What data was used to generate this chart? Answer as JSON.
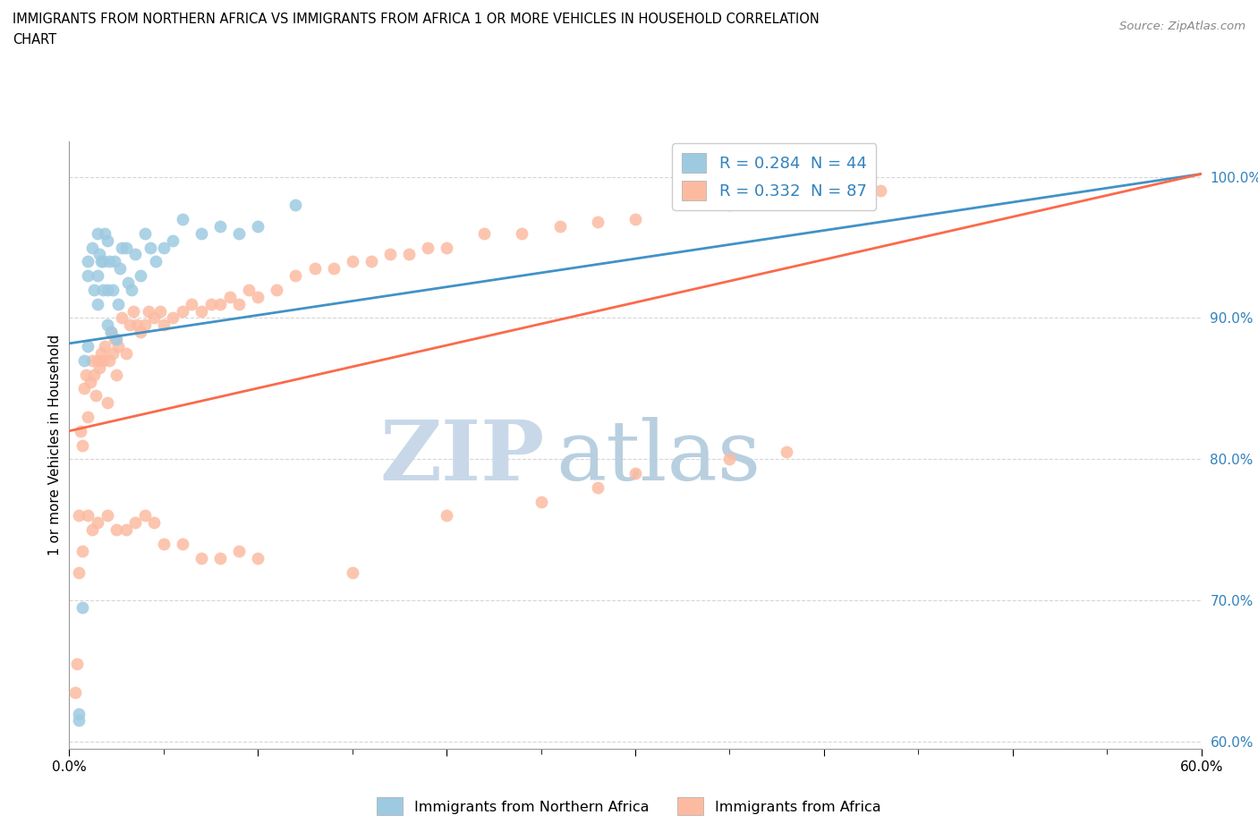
{
  "title_line1": "IMMIGRANTS FROM NORTHERN AFRICA VS IMMIGRANTS FROM AFRICA 1 OR MORE VEHICLES IN HOUSEHOLD CORRELATION",
  "title_line2": "CHART",
  "source": "Source: ZipAtlas.com",
  "ylabel": "1 or more Vehicles in Household",
  "xlim": [
    0.0,
    0.6
  ],
  "ylim": [
    0.595,
    1.025
  ],
  "yticks": [
    0.6,
    0.7,
    0.8,
    0.9,
    1.0
  ],
  "ytick_labels": [
    "60.0%",
    "70.0%",
    "80.0%",
    "90.0%",
    "100.0%"
  ],
  "xticks": [
    0.0,
    0.1,
    0.2,
    0.3,
    0.4,
    0.5,
    0.6
  ],
  "xtick_labels_show": [
    "0.0%",
    "",
    "",
    "",
    "",
    "",
    "60.0%"
  ],
  "R_blue": 0.284,
  "N_blue": 44,
  "R_pink": 0.332,
  "N_pink": 87,
  "color_blue": "#9ecae1",
  "color_pink": "#fcbba1",
  "color_blue_line": "#4292c6",
  "color_pink_line": "#fb6a4a",
  "watermark_zip": "ZIP",
  "watermark_atlas": "atlas",
  "watermark_color_zip": "#c8d8e8",
  "watermark_color_atlas": "#b8cfe0",
  "legend_text_color": "#3182bd",
  "blue_scatter_x": [
    0.005,
    0.005,
    0.007,
    0.01,
    0.01,
    0.012,
    0.013,
    0.015,
    0.015,
    0.016,
    0.017,
    0.018,
    0.018,
    0.019,
    0.02,
    0.02,
    0.021,
    0.022,
    0.023,
    0.024,
    0.025,
    0.026,
    0.027,
    0.028,
    0.03,
    0.031,
    0.033,
    0.035,
    0.038,
    0.04,
    0.043,
    0.046,
    0.05,
    0.055,
    0.06,
    0.07,
    0.08,
    0.09,
    0.1,
    0.12,
    0.008,
    0.01,
    0.015,
    0.02
  ],
  "blue_scatter_y": [
    0.62,
    0.615,
    0.695,
    0.93,
    0.94,
    0.95,
    0.92,
    0.91,
    0.93,
    0.945,
    0.94,
    0.92,
    0.94,
    0.96,
    0.895,
    0.92,
    0.94,
    0.89,
    0.92,
    0.94,
    0.885,
    0.91,
    0.935,
    0.95,
    0.95,
    0.925,
    0.92,
    0.945,
    0.93,
    0.96,
    0.95,
    0.94,
    0.95,
    0.955,
    0.97,
    0.96,
    0.965,
    0.96,
    0.965,
    0.98,
    0.87,
    0.88,
    0.96,
    0.955
  ],
  "pink_scatter_x": [
    0.003,
    0.004,
    0.005,
    0.006,
    0.007,
    0.008,
    0.009,
    0.01,
    0.011,
    0.012,
    0.013,
    0.014,
    0.015,
    0.016,
    0.017,
    0.018,
    0.019,
    0.02,
    0.021,
    0.022,
    0.023,
    0.024,
    0.025,
    0.026,
    0.028,
    0.03,
    0.032,
    0.034,
    0.036,
    0.038,
    0.04,
    0.042,
    0.045,
    0.048,
    0.05,
    0.055,
    0.06,
    0.065,
    0.07,
    0.075,
    0.08,
    0.085,
    0.09,
    0.095,
    0.1,
    0.11,
    0.12,
    0.13,
    0.14,
    0.15,
    0.16,
    0.17,
    0.18,
    0.19,
    0.2,
    0.22,
    0.24,
    0.26,
    0.28,
    0.3,
    0.35,
    0.4,
    0.43,
    0.005,
    0.007,
    0.01,
    0.012,
    0.015,
    0.02,
    0.025,
    0.03,
    0.035,
    0.04,
    0.045,
    0.05,
    0.06,
    0.07,
    0.08,
    0.09,
    0.1,
    0.15,
    0.2,
    0.25,
    0.28,
    0.3,
    0.35,
    0.38
  ],
  "pink_scatter_y": [
    0.635,
    0.655,
    0.76,
    0.82,
    0.81,
    0.85,
    0.86,
    0.83,
    0.855,
    0.87,
    0.86,
    0.845,
    0.87,
    0.865,
    0.875,
    0.87,
    0.88,
    0.84,
    0.87,
    0.89,
    0.875,
    0.885,
    0.86,
    0.88,
    0.9,
    0.875,
    0.895,
    0.905,
    0.895,
    0.89,
    0.895,
    0.905,
    0.9,
    0.905,
    0.895,
    0.9,
    0.905,
    0.91,
    0.905,
    0.91,
    0.91,
    0.915,
    0.91,
    0.92,
    0.915,
    0.92,
    0.93,
    0.935,
    0.935,
    0.94,
    0.94,
    0.945,
    0.945,
    0.95,
    0.95,
    0.96,
    0.96,
    0.965,
    0.968,
    0.97,
    0.98,
    0.985,
    0.99,
    0.72,
    0.735,
    0.76,
    0.75,
    0.755,
    0.76,
    0.75,
    0.75,
    0.755,
    0.76,
    0.755,
    0.74,
    0.74,
    0.73,
    0.73,
    0.735,
    0.73,
    0.72,
    0.76,
    0.77,
    0.78,
    0.79,
    0.8,
    0.805
  ]
}
